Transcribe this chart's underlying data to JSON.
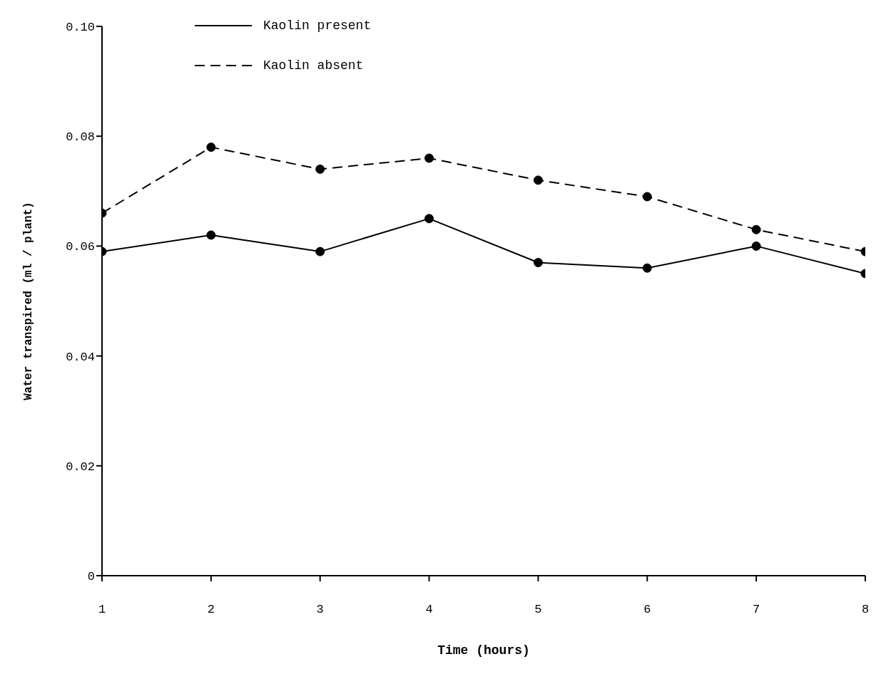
{
  "chart_data": {
    "type": "line",
    "xlabel": "Time (hours)",
    "ylabel": "Water transpired  (ml / plant)",
    "x": [
      1,
      2,
      3,
      4,
      5,
      6,
      7,
      8
    ],
    "series": [
      {
        "name": "Kaolin present",
        "color": "#000000",
        "line_style": "solid",
        "values": [
          0.059,
          0.062,
          0.059,
          0.065,
          0.057,
          0.056,
          0.06,
          0.055
        ]
      },
      {
        "name": "Kaolin absent",
        "color": "#000000",
        "line_style": "dashed",
        "values": [
          0.066,
          0.078,
          0.074,
          0.076,
          0.072,
          0.069,
          0.063,
          0.059
        ]
      }
    ],
    "xlim": [
      1,
      8
    ],
    "xticks": [
      1,
      2,
      3,
      4,
      5,
      6,
      7,
      8
    ],
    "ylim": [
      0,
      0.1
    ],
    "yticks": [
      0,
      0.02,
      0.04,
      0.06,
      0.08,
      {
        "value": 0.1,
        "label": "0.10"
      }
    ],
    "grid": false,
    "legend": "top left",
    "marker": "circle"
  }
}
